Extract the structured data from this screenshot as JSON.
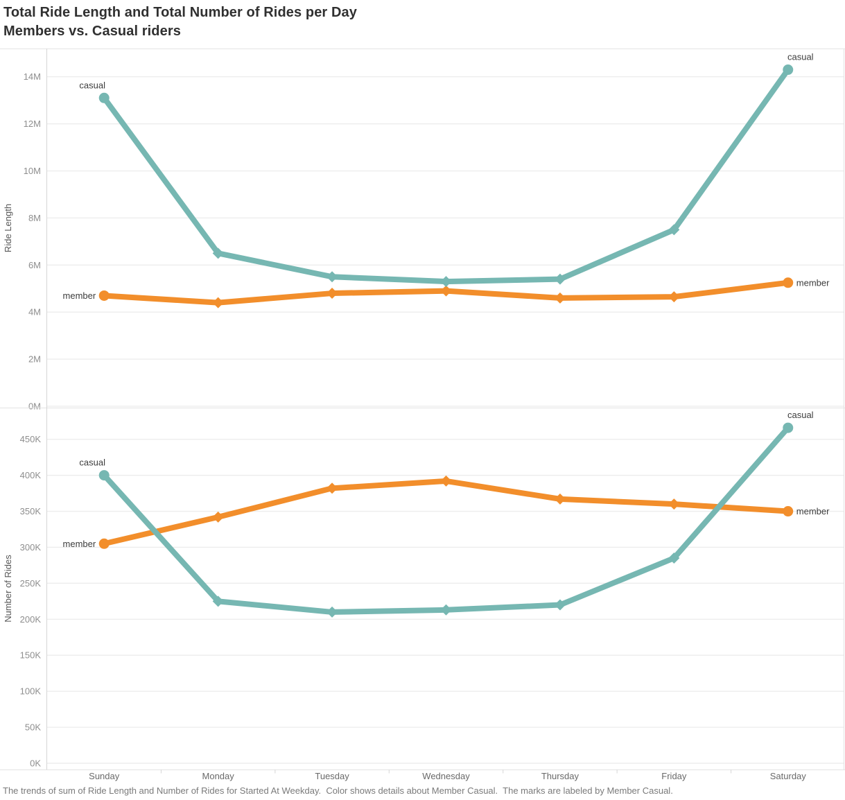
{
  "title": {
    "line1": "Total Ride Length and Total Number of Rides per Day",
    "line2": "Members vs. Casual riders"
  },
  "caption": "The trends of sum of Ride Length and Number of Rides for Started At Weekday.  Color shows details about Member Casual.  The marks are labeled by Member Casual.",
  "colors": {
    "casual": "#76B7B2",
    "member": "#F28E2B",
    "gridline": "#EDEDED",
    "axis_line": "#D6D6D6",
    "panel_border": "#E3E3E3",
    "tick_label": "#8E8E8E",
    "axis_title": "#575757",
    "day_label": "#696969",
    "series_label": "#3C3C3C"
  },
  "categories": [
    "Sunday",
    "Monday",
    "Tuesday",
    "Wednesday",
    "Thursday",
    "Friday",
    "Saturday"
  ],
  "chart_data": [
    {
      "type": "line",
      "panel": "top",
      "ylabel": "Ride Length",
      "grid": true,
      "legend": "labels-on-marks",
      "categories": [
        "Sunday",
        "Monday",
        "Tuesday",
        "Wednesday",
        "Thursday",
        "Friday",
        "Saturday"
      ],
      "ylim": [
        0,
        15200000
      ],
      "yticks": [
        0,
        2000000,
        4000000,
        6000000,
        8000000,
        10000000,
        12000000,
        14000000
      ],
      "ytick_labels": [
        "0M",
        "2M",
        "4M",
        "6M",
        "8M",
        "10M",
        "12M",
        "14M"
      ],
      "series": [
        {
          "name": "member",
          "label": "member",
          "color_key": "member",
          "label_placement": "side",
          "values": [
            4700000,
            4400000,
            4800000,
            4900000,
            4600000,
            4650000,
            5250000
          ]
        },
        {
          "name": "casual",
          "label": "casual",
          "color_key": "casual",
          "label_placement": "above",
          "values": [
            13100000,
            6500000,
            5500000,
            5300000,
            5400000,
            7500000,
            14300000
          ]
        }
      ]
    },
    {
      "type": "line",
      "panel": "bottom",
      "ylabel": "Number of Rides",
      "grid": true,
      "legend": "labels-on-marks",
      "categories": [
        "Sunday",
        "Monday",
        "Tuesday",
        "Wednesday",
        "Thursday",
        "Friday",
        "Saturday"
      ],
      "ylim": [
        0,
        494000
      ],
      "yticks": [
        0,
        50000,
        100000,
        150000,
        200000,
        250000,
        300000,
        350000,
        400000,
        450000
      ],
      "ytick_labels": [
        "0K",
        "50K",
        "100K",
        "150K",
        "200K",
        "250K",
        "300K",
        "350K",
        "400K",
        "450K"
      ],
      "series": [
        {
          "name": "member",
          "label": "member",
          "color_key": "member",
          "label_placement": "side",
          "values": [
            305000,
            342000,
            382000,
            392000,
            367000,
            360000,
            350000
          ]
        },
        {
          "name": "casual",
          "label": "casual",
          "color_key": "casual",
          "label_placement": "above",
          "values": [
            400000,
            225000,
            210000,
            213000,
            220000,
            285000,
            466000
          ]
        }
      ]
    }
  ]
}
